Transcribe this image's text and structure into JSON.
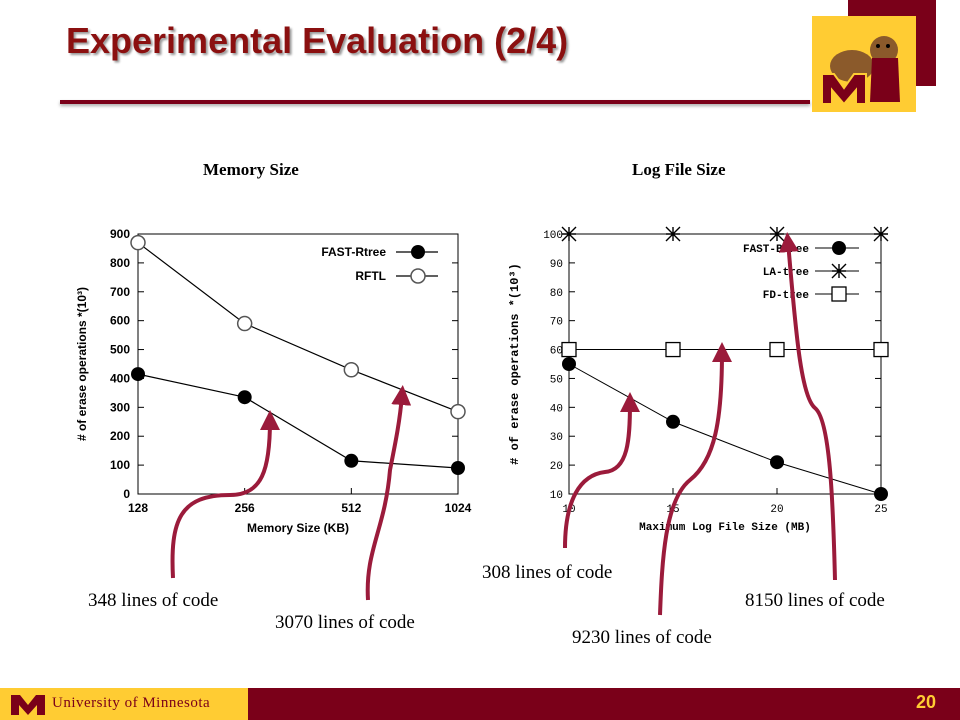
{
  "slide": {
    "title": "Experimental Evaluation (2/4)",
    "subtitles": [
      "Memory Size",
      "Log File Size"
    ],
    "annotations": [
      "348 lines of code",
      "3070 lines of code",
      "308 lines of code",
      "9230 lines of code",
      "8150 lines of code"
    ],
    "footer": "University of Minnesota",
    "page_number": "20",
    "colors": {
      "maroon": "#7a0019",
      "gold": "#ffcc33",
      "arrow": "#9b1b3b"
    }
  },
  "chart_data": [
    {
      "type": "line",
      "xlabel": "Memory Size (KB)",
      "ylabel": "# of erase operations *(10³)",
      "categories": [
        "128",
        "256",
        "512",
        "1024"
      ],
      "yticks": [
        "0",
        "100",
        "200",
        "300",
        "400",
        "500",
        "600",
        "700",
        "800",
        "900"
      ],
      "ylim": [
        0,
        900
      ],
      "legend_position": "top-right",
      "grid": false,
      "series": [
        {
          "name": "FAST-Rtree",
          "marker": "filled-circle",
          "values": [
            415,
            335,
            115,
            90
          ]
        },
        {
          "name": "RFTL",
          "marker": "open-circle",
          "values": [
            870,
            590,
            430,
            285
          ]
        }
      ]
    },
    {
      "type": "line",
      "xlabel": "Maximum Log File Size (MB)",
      "ylabel": "# of erase operations *(10³)",
      "xticks": [
        "10",
        "15",
        "20",
        "25"
      ],
      "xlim": [
        10,
        25
      ],
      "yticks": [
        "10",
        "20",
        "30",
        "40",
        "50",
        "60",
        "70",
        "80",
        "90",
        "100"
      ],
      "ylim": [
        10,
        100
      ],
      "legend_position": "top-right",
      "grid": false,
      "series": [
        {
          "name": "FAST-Btree",
          "marker": "filled-circle",
          "x": [
            10,
            15,
            20,
            25
          ],
          "values": [
            55,
            35,
            21,
            10
          ]
        },
        {
          "name": "LA-tree",
          "marker": "star",
          "x": [
            10,
            15,
            20,
            25
          ],
          "values": [
            100,
            100,
            100,
            100
          ]
        },
        {
          "name": "FD-tree",
          "marker": "open-square",
          "x": [
            10,
            15,
            20,
            25
          ],
          "values": [
            60,
            60,
            60,
            60
          ]
        }
      ]
    }
  ]
}
